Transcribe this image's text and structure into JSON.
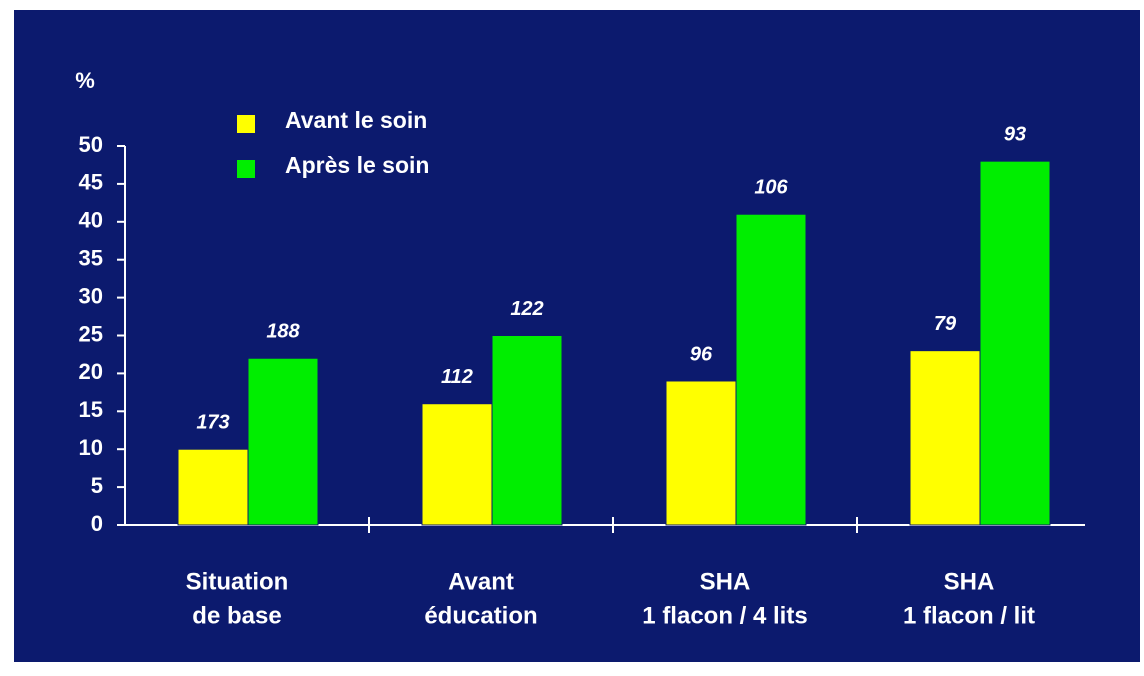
{
  "chart_data": {
    "type": "bar",
    "y_label": "%",
    "categories": [
      [
        "Situation",
        "de base"
      ],
      [
        "Avant",
        "éducation"
      ],
      [
        "SHA",
        "1 flacon / 4 lits"
      ],
      [
        "SHA",
        "1 flacon / lit"
      ]
    ],
    "series": [
      {
        "name": "Avant le soin",
        "color": "#ffff00",
        "values": [
          10,
          16,
          19,
          23
        ],
        "bar_labels": [
          173,
          112,
          96,
          79
        ]
      },
      {
        "name": "Après le soin",
        "color": "#00ee00",
        "values": [
          22,
          25,
          41,
          48
        ],
        "bar_labels": [
          188,
          122,
          106,
          93
        ]
      }
    ],
    "ylim": [
      0,
      50
    ],
    "yticks": [
      0,
      5,
      10,
      15,
      20,
      25,
      30,
      35,
      40,
      45,
      50
    ],
    "background": "#0c1a6e"
  }
}
